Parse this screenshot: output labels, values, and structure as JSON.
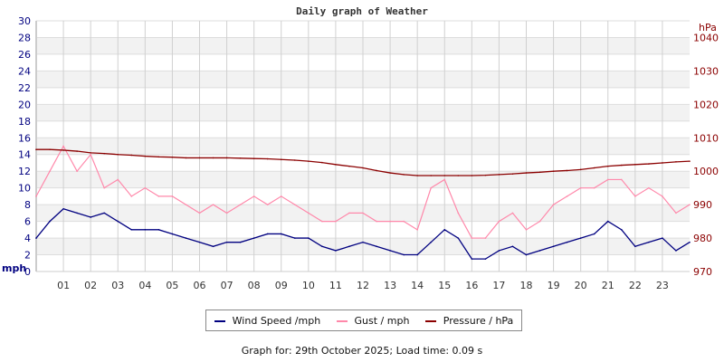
{
  "chart_data": {
    "type": "line",
    "title": "Daily graph of Weather",
    "ylabel": "mph",
    "y2label": "hPa",
    "ylim": [
      0,
      30
    ],
    "y2lim": [
      970,
      1045
    ],
    "xlim": [
      0,
      24
    ],
    "yticks": [
      0,
      2,
      4,
      6,
      8,
      10,
      12,
      14,
      16,
      18,
      20,
      22,
      24,
      26,
      28,
      30
    ],
    "y2ticks": [
      970,
      980,
      990,
      1000,
      1010,
      1020,
      1030,
      1040
    ],
    "xticks": [
      "01",
      "02",
      "03",
      "04",
      "05",
      "06",
      "07",
      "08",
      "09",
      "10",
      "11",
      "12",
      "13",
      "14",
      "15",
      "16",
      "17",
      "18",
      "19",
      "20",
      "21",
      "22",
      "23"
    ],
    "grid": true,
    "legend_position": "bottom",
    "x_hours": [
      0,
      0.5,
      1,
      1.5,
      2,
      2.5,
      3,
      3.5,
      4,
      4.5,
      5,
      5.5,
      6,
      6.5,
      7,
      7.5,
      8,
      8.5,
      9,
      9.5,
      10,
      10.5,
      11,
      11.5,
      12,
      12.5,
      13,
      13.5,
      14,
      14.5,
      15,
      15.5,
      16,
      16.5,
      17,
      17.5,
      18,
      18.5,
      19,
      19.5,
      20,
      20.5,
      21,
      21.5,
      22,
      22.5,
      23,
      23.5,
      24
    ],
    "series": [
      {
        "name": "Wind Speed /mph",
        "color": "#000080",
        "axis": "left",
        "values": [
          4,
          6,
          7.5,
          7,
          6.5,
          7,
          6,
          5,
          5,
          5,
          4.5,
          4,
          3.5,
          3,
          3.5,
          3.5,
          4,
          4.5,
          4.5,
          4,
          4,
          3,
          2.5,
          3,
          3.5,
          3,
          2.5,
          2,
          2,
          3.5,
          5,
          4,
          1.5,
          1.5,
          2.5,
          3,
          2,
          2.5,
          3,
          3.5,
          4,
          4.5,
          6,
          5,
          3,
          3.5,
          4,
          2.5,
          3.5
        ]
      },
      {
        "name": "Gust / mph",
        "color": "#ff88aa",
        "axis": "left",
        "values": [
          9,
          12,
          15,
          12,
          14,
          10,
          11,
          9,
          10,
          9,
          9,
          8,
          7,
          8,
          7,
          8,
          9,
          8,
          9,
          8,
          7,
          6,
          6,
          7,
          7,
          6,
          6,
          6,
          5,
          10,
          11,
          7,
          4,
          4,
          6,
          7,
          5,
          6,
          8,
          9,
          10,
          10,
          11,
          11,
          9,
          10,
          9,
          7,
          8
        ]
      },
      {
        "name": "Pressure / hPa",
        "color": "#8b0000",
        "axis": "right",
        "values": [
          1006.5,
          1006.5,
          1006.3,
          1006,
          1005.5,
          1005.3,
          1005,
          1004.8,
          1004.5,
          1004.3,
          1004.2,
          1004,
          1004,
          1004,
          1004,
          1003.9,
          1003.8,
          1003.7,
          1003.5,
          1003.3,
          1003,
          1002.6,
          1002,
          1001.5,
          1001,
          1000.2,
          999.5,
          999,
          998.7,
          998.7,
          998.7,
          998.7,
          998.7,
          998.8,
          999,
          999.2,
          999.5,
          999.7,
          1000,
          1000.2,
          1000.5,
          1001,
          1001.5,
          1001.8,
          1002,
          1002.2,
          1002.5,
          1002.8,
          1003
        ]
      }
    ]
  },
  "footer": "Graph for: 29th October 2025; Load time: 0.09 s"
}
